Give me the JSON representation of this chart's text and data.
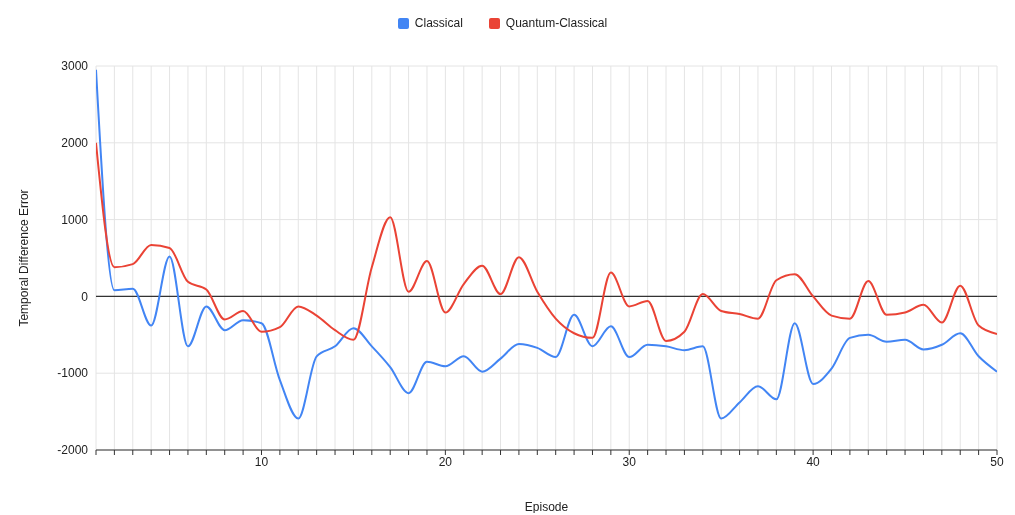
{
  "chart_data": {
    "type": "line",
    "xlabel": "Episode",
    "ylabel": "Temporal Difference Error",
    "x": [
      1,
      2,
      3,
      4,
      5,
      6,
      7,
      8,
      9,
      10,
      11,
      12,
      13,
      14,
      15,
      16,
      17,
      18,
      19,
      20,
      21,
      22,
      23,
      24,
      25,
      26,
      27,
      28,
      29,
      30,
      31,
      32,
      33,
      34,
      35,
      36,
      37,
      38,
      39,
      40,
      41,
      42,
      43,
      44,
      45,
      46,
      47,
      48,
      49,
      50
    ],
    "series": [
      {
        "name": "Classical",
        "color": "#4285f4",
        "values": [
          2950,
          80,
          100,
          -380,
          520,
          -650,
          -130,
          -440,
          -310,
          -350,
          -1090,
          -1590,
          -780,
          -650,
          -415,
          -650,
          -920,
          -1260,
          -850,
          -910,
          -780,
          -980,
          -810,
          -620,
          -670,
          -790,
          -240,
          -650,
          -390,
          -790,
          -630,
          -650,
          -700,
          -650,
          -1590,
          -1380,
          -1170,
          -1340,
          -350,
          -1140,
          -940,
          -540,
          -500,
          -590,
          -565,
          -690,
          -630,
          -480,
          -780,
          -980
        ]
      },
      {
        "name": "Quantum-Classical",
        "color": "#ea4335",
        "values": [
          2000,
          380,
          420,
          670,
          630,
          190,
          90,
          -300,
          -190,
          -460,
          -400,
          -130,
          -250,
          -440,
          -565,
          380,
          1030,
          60,
          460,
          -210,
          160,
          400,
          30,
          510,
          60,
          -290,
          -480,
          -540,
          310,
          -130,
          -60,
          -580,
          -460,
          30,
          -190,
          -230,
          -290,
          210,
          290,
          0,
          -250,
          -290,
          200,
          -240,
          -210,
          -110,
          -340,
          140,
          -380,
          -490
        ]
      }
    ],
    "xlim": [
      1,
      50
    ],
    "xticks": [
      {
        "value": 1,
        "label": null
      },
      {
        "value": 2,
        "label": null
      },
      {
        "value": 3,
        "label": null
      },
      {
        "value": 4,
        "label": null
      },
      {
        "value": 5,
        "label": null
      },
      {
        "value": 6,
        "label": null
      },
      {
        "value": 7,
        "label": null
      },
      {
        "value": 8,
        "label": null
      },
      {
        "value": 9,
        "label": null
      },
      10,
      {
        "value": 11,
        "label": null
      },
      {
        "value": 12,
        "label": null
      },
      {
        "value": 13,
        "label": null
      },
      {
        "value": 14,
        "label": null
      },
      {
        "value": 15,
        "label": null
      },
      {
        "value": 16,
        "label": null
      },
      {
        "value": 17,
        "label": null
      },
      {
        "value": 18,
        "label": null
      },
      {
        "value": 19,
        "label": null
      },
      20,
      {
        "value": 21,
        "label": null
      },
      {
        "value": 22,
        "label": null
      },
      {
        "value": 23,
        "label": null
      },
      {
        "value": 24,
        "label": null
      },
      {
        "value": 25,
        "label": null
      },
      {
        "value": 26,
        "label": null
      },
      {
        "value": 27,
        "label": null
      },
      {
        "value": 28,
        "label": null
      },
      {
        "value": 29,
        "label": null
      },
      30,
      {
        "value": 31,
        "label": null
      },
      {
        "value": 32,
        "label": null
      },
      {
        "value": 33,
        "label": null
      },
      {
        "value": 34,
        "label": null
      },
      {
        "value": 35,
        "label": null
      },
      {
        "value": 36,
        "label": null
      },
      {
        "value": 37,
        "label": null
      },
      {
        "value": 38,
        "label": null
      },
      {
        "value": 39,
        "label": null
      },
      40,
      {
        "value": 41,
        "label": null
      },
      {
        "value": 42,
        "label": null
      },
      {
        "value": 43,
        "label": null
      },
      {
        "value": 44,
        "label": null
      },
      {
        "value": 45,
        "label": null
      },
      {
        "value": 46,
        "label": null
      },
      {
        "value": 47,
        "label": null
      },
      {
        "value": 48,
        "label": null
      },
      {
        "value": 49,
        "label": null
      },
      50
    ],
    "ylim": [
      -2000,
      3000
    ],
    "yticks": [
      -2000,
      -1000,
      0,
      1000,
      2000,
      3000
    ],
    "ref_lines": [
      {
        "axis": "y",
        "value": 0,
        "color": "#333333"
      }
    ],
    "grid": true,
    "legend": "top",
    "marker": "none",
    "line_style": "solid"
  }
}
